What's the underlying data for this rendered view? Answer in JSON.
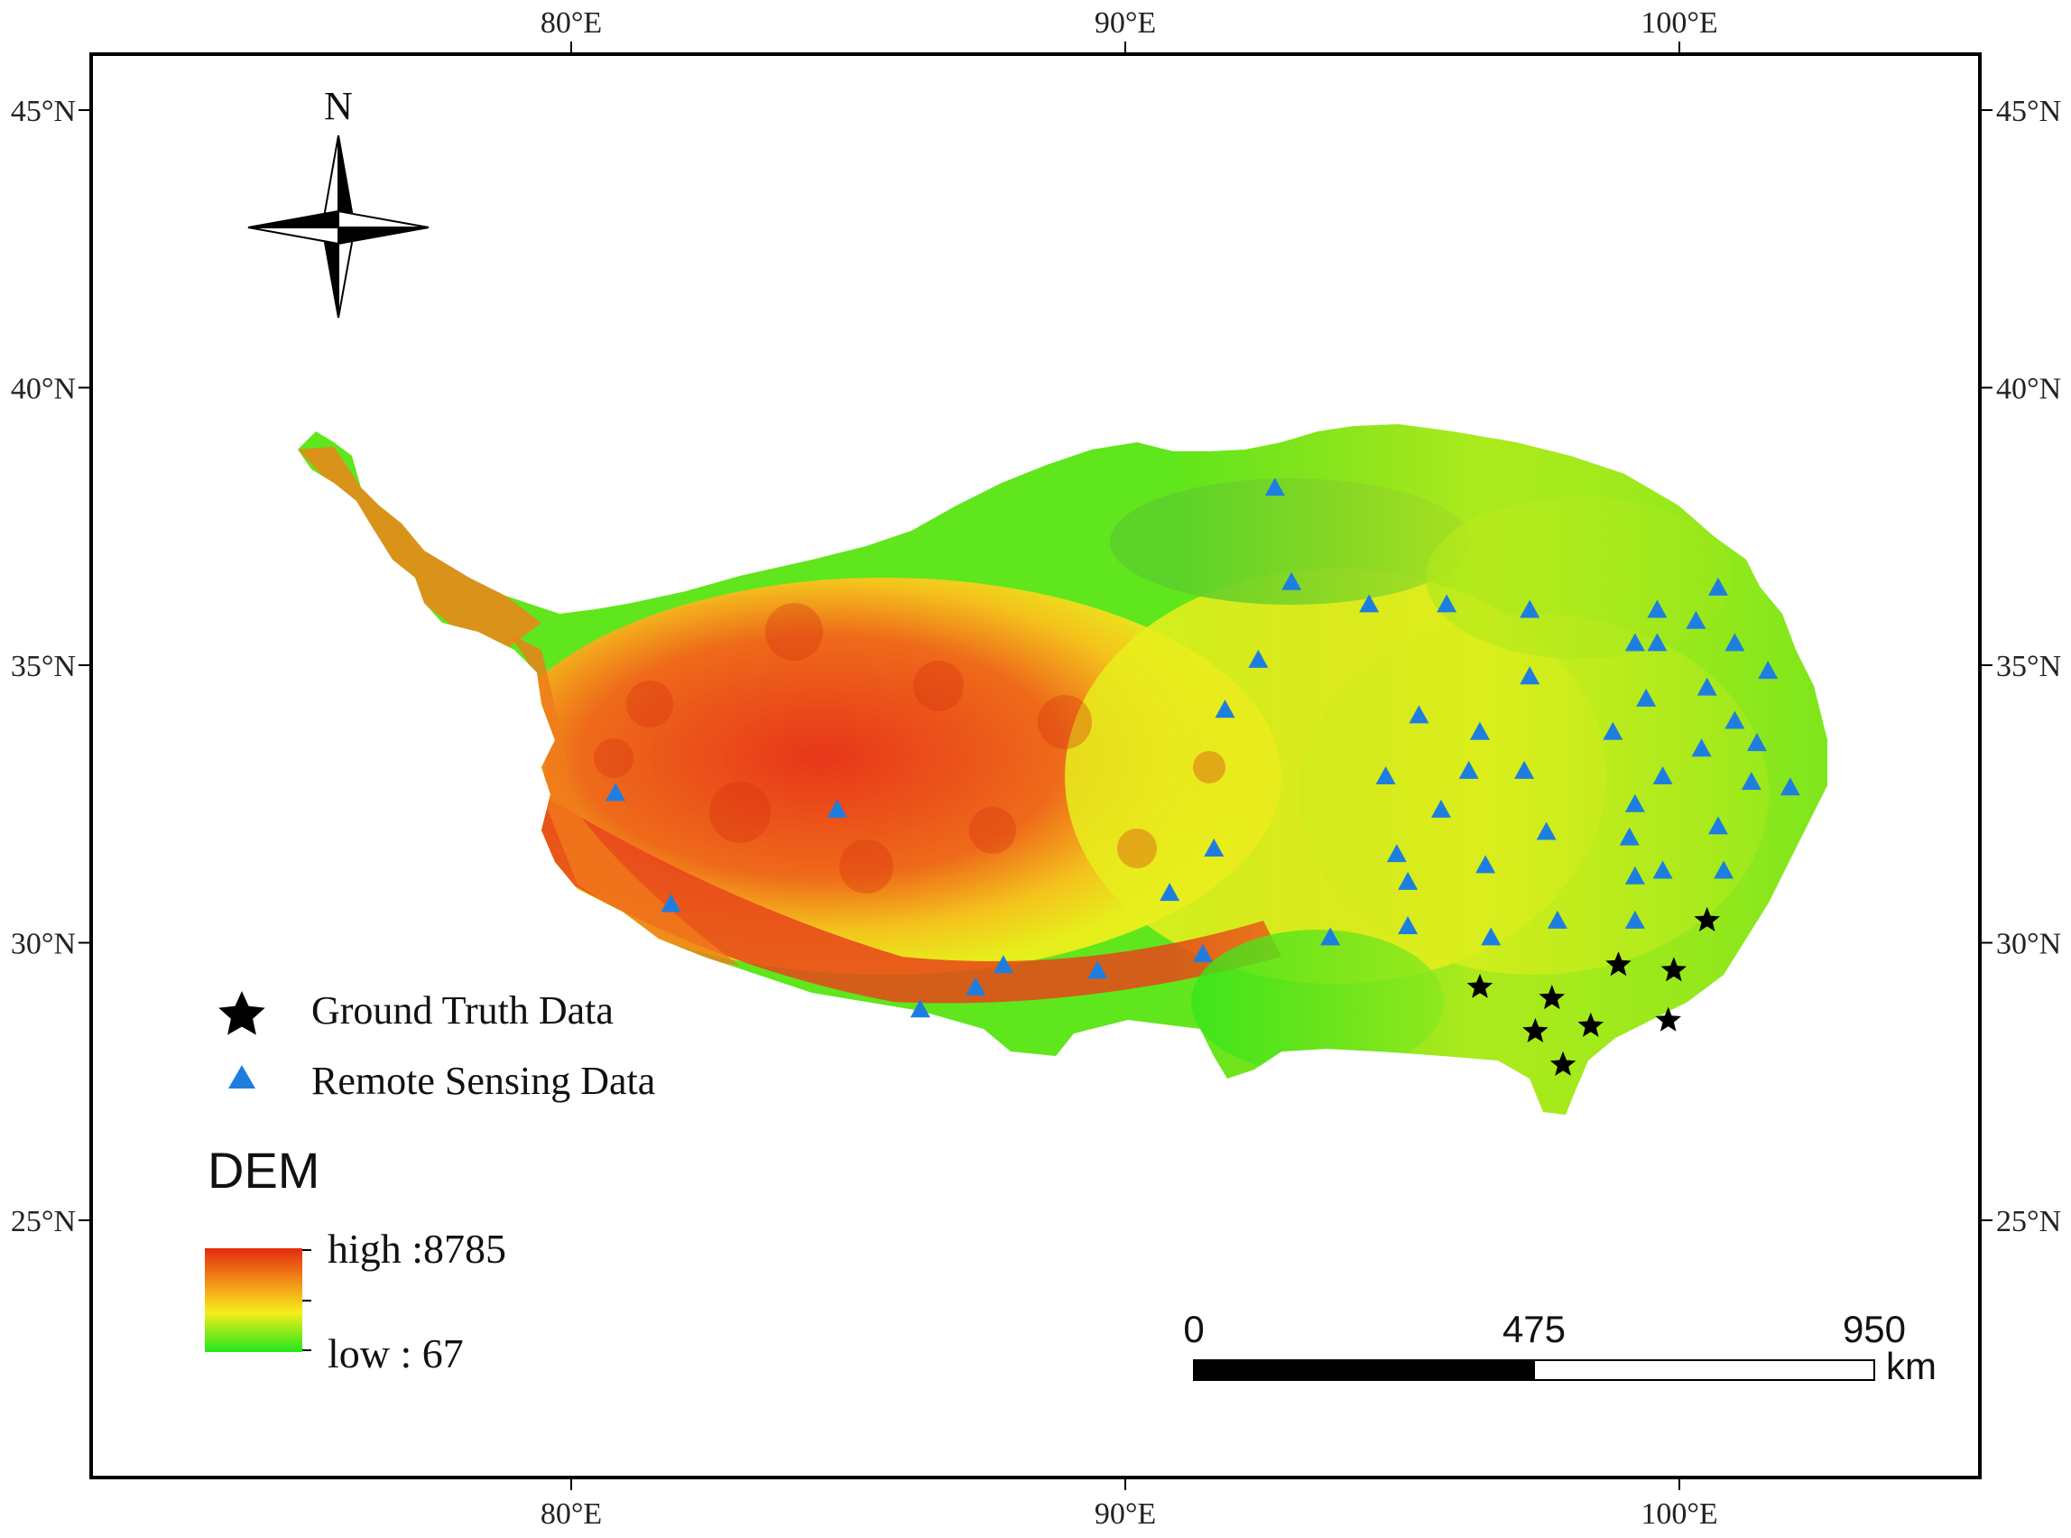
{
  "map": {
    "graticule": {
      "lon_labels": [
        "80°E",
        "90°E",
        "100°E"
      ],
      "lat_labels": [
        "45°N",
        "40°N",
        "35°N",
        "30°N",
        "25°N"
      ]
    },
    "north_arrow": {
      "label": "N"
    },
    "legend": {
      "ground_truth_label": "Ground Truth Data",
      "remote_sensing_label": "Remote Sensing Data",
      "dem_title": "DEM",
      "high_label": "high :8785",
      "low_label": "low : 67"
    },
    "scale_bar": {
      "labels": [
        "0",
        "475",
        "950"
      ],
      "unit": "km"
    },
    "colors": {
      "dem_high": "#e52a10",
      "dem_mid": "#f5ee1a",
      "dem_low": "#22e61c",
      "remote_sensing_marker": "#1e7ee0",
      "ground_truth_marker": "#000000"
    },
    "ground_truth_points": [
      [
        96.4,
        29.2
      ],
      [
        97.7,
        29.0
      ],
      [
        97.4,
        28.4
      ],
      [
        98.4,
        28.5
      ],
      [
        97.9,
        27.8
      ],
      [
        98.9,
        29.6
      ],
      [
        99.9,
        29.5
      ],
      [
        99.8,
        28.6
      ],
      [
        100.5,
        30.4
      ]
    ],
    "remote_sensing_points": [
      [
        92.7,
        38.2
      ],
      [
        93.0,
        36.5
      ],
      [
        94.4,
        36.1
      ],
      [
        95.8,
        36.1
      ],
      [
        97.3,
        36.0
      ],
      [
        99.6,
        36.0
      ],
      [
        100.3,
        35.8
      ],
      [
        100.7,
        36.4
      ],
      [
        99.2,
        35.4
      ],
      [
        99.6,
        35.4
      ],
      [
        101.0,
        35.4
      ],
      [
        92.4,
        35.1
      ],
      [
        97.3,
        34.8
      ],
      [
        99.4,
        34.4
      ],
      [
        100.5,
        34.6
      ],
      [
        101.6,
        34.9
      ],
      [
        91.8,
        34.2
      ],
      [
        95.3,
        34.1
      ],
      [
        96.4,
        33.8
      ],
      [
        98.8,
        33.8
      ],
      [
        101.0,
        34.0
      ],
      [
        94.7,
        33.0
      ],
      [
        96.2,
        33.1
      ],
      [
        97.2,
        33.1
      ],
      [
        99.7,
        33.0
      ],
      [
        100.4,
        33.5
      ],
      [
        101.3,
        32.9
      ],
      [
        101.4,
        33.6
      ],
      [
        102.0,
        32.8
      ],
      [
        80.8,
        32.7
      ],
      [
        84.8,
        32.4
      ],
      [
        95.7,
        32.4
      ],
      [
        99.2,
        32.5
      ],
      [
        97.6,
        32.0
      ],
      [
        99.1,
        31.9
      ],
      [
        100.7,
        32.1
      ],
      [
        91.6,
        31.7
      ],
      [
        94.9,
        31.6
      ],
      [
        96.5,
        31.4
      ],
      [
        99.2,
        31.2
      ],
      [
        99.7,
        31.3
      ],
      [
        100.8,
        31.3
      ],
      [
        95.1,
        31.1
      ],
      [
        90.8,
        30.9
      ],
      [
        81.8,
        30.7
      ],
      [
        97.8,
        30.4
      ],
      [
        99.2,
        30.4
      ],
      [
        95.1,
        30.3
      ],
      [
        93.7,
        30.1
      ],
      [
        96.6,
        30.1
      ],
      [
        91.4,
        29.8
      ],
      [
        87.8,
        29.6
      ],
      [
        89.5,
        29.5
      ],
      [
        87.3,
        29.2
      ],
      [
        86.3,
        28.8
      ]
    ]
  }
}
